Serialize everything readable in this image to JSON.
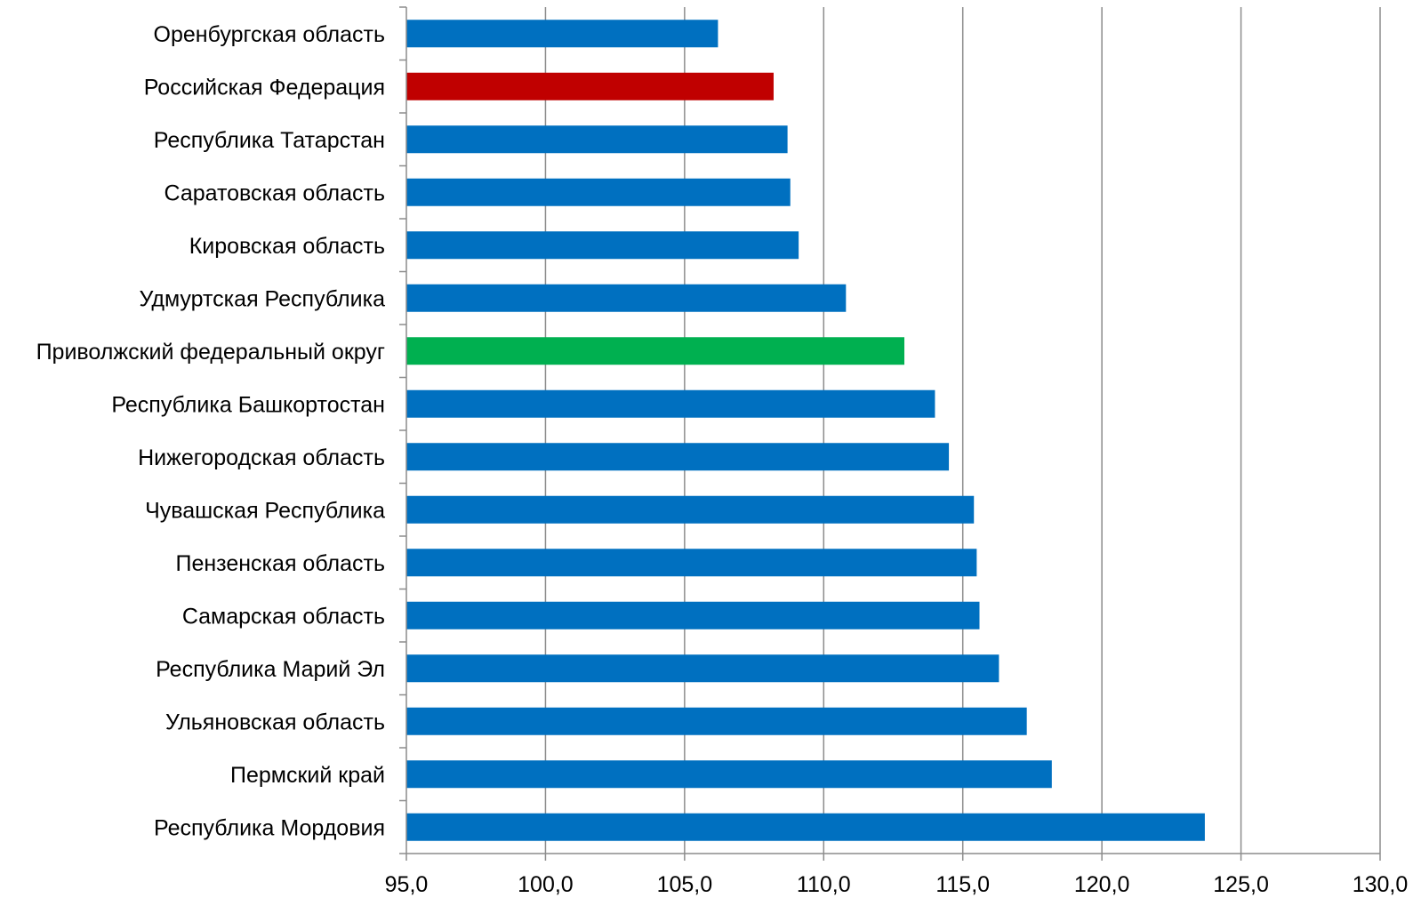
{
  "chart_data": {
    "type": "bar",
    "orientation": "horizontal",
    "categories": [
      "Оренбургская область",
      "Российская Федерация",
      "Республика Татарстан",
      "Саратовская область",
      "Кировская область",
      "Удмуртская Республика",
      "Приволжский федеральный округ",
      "Республика Башкортостан",
      "Нижегородская область",
      "Чувашская Республика",
      "Пензенская область",
      "Самарская область",
      "Республика Марий Эл",
      "Ульяновская область",
      "Пермский край",
      "Республика Мордовия"
    ],
    "values": [
      106.2,
      108.2,
      108.7,
      108.8,
      109.1,
      110.8,
      112.9,
      114.0,
      114.5,
      115.4,
      115.5,
      115.6,
      116.3,
      117.3,
      118.2,
      123.7
    ],
    "colors": [
      "#0070C0",
      "#C00000",
      "#0070C0",
      "#0070C0",
      "#0070C0",
      "#0070C0",
      "#00B050",
      "#0070C0",
      "#0070C0",
      "#0070C0",
      "#0070C0",
      "#0070C0",
      "#0070C0",
      "#0070C0",
      "#0070C0",
      "#0070C0"
    ],
    "xlim": [
      95,
      130
    ],
    "x_ticks": [
      "95,0",
      "100,0",
      "105,0",
      "110,0",
      "115,0",
      "120,0",
      "125,0",
      "130,0"
    ],
    "x_tick_values": [
      95,
      100,
      105,
      110,
      115,
      120,
      125,
      130
    ],
    "grid": "vertical",
    "title": "",
    "xlabel": "",
    "ylabel": ""
  }
}
